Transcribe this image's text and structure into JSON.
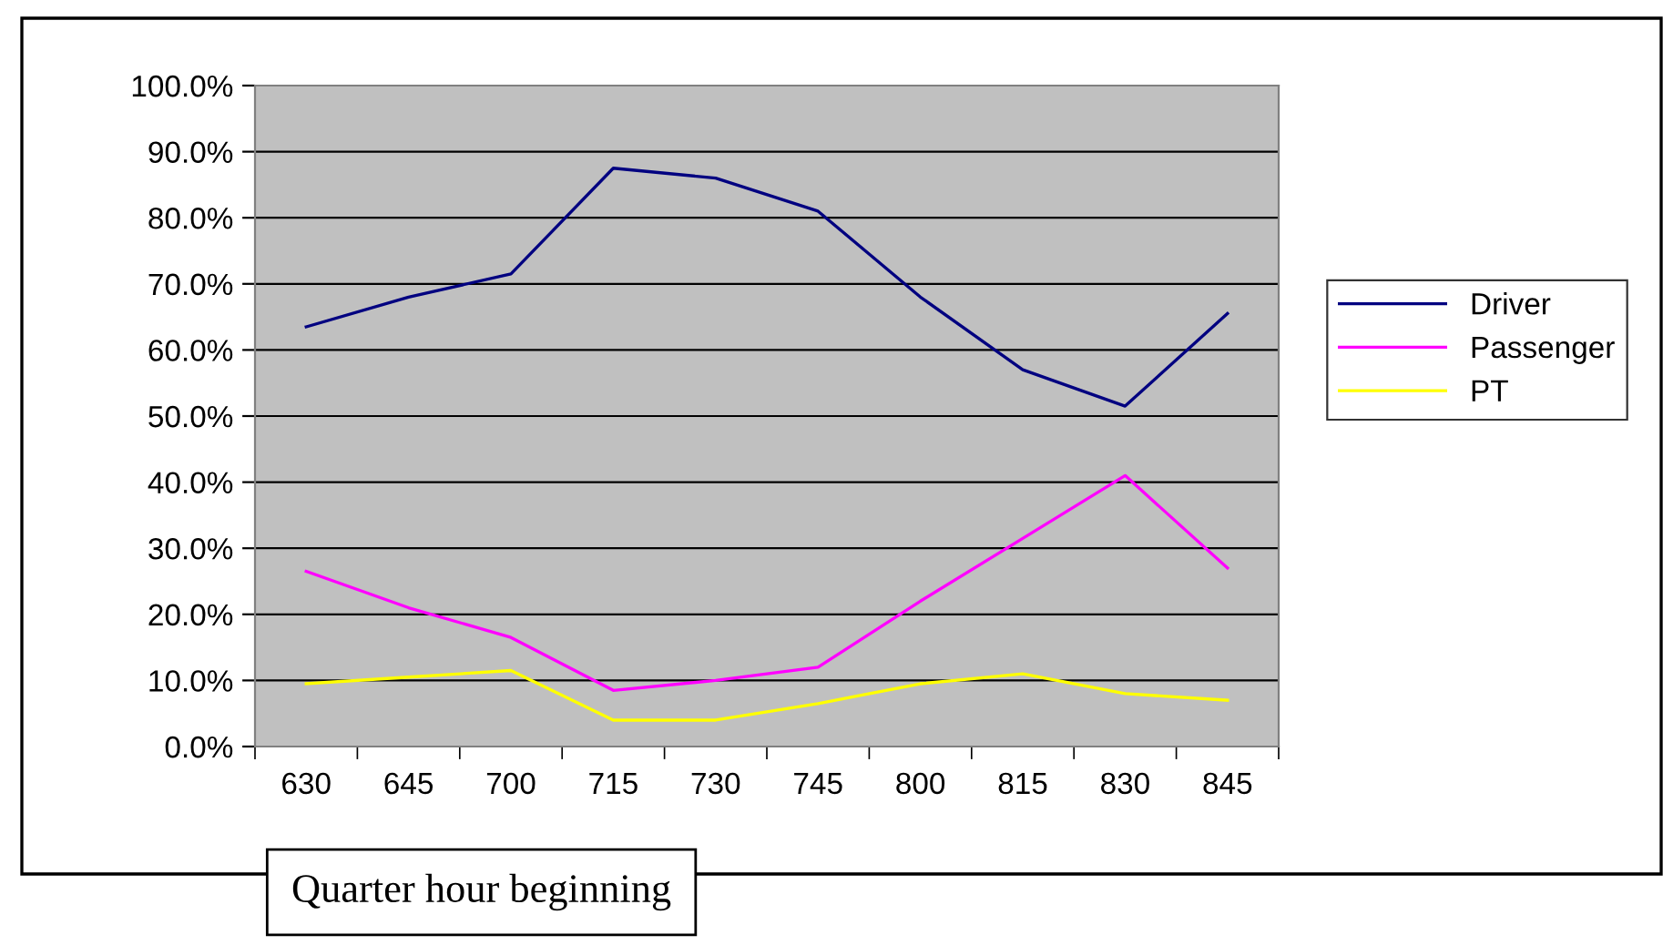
{
  "chart_data": {
    "type": "line",
    "xlabel": "Quarter hour beginning",
    "categories": [
      "630",
      "645",
      "700",
      "715",
      "730",
      "745",
      "800",
      "815",
      "830",
      "845"
    ],
    "series": [
      {
        "name": "Driver",
        "color": "#000080",
        "values": [
          63.5,
          68,
          71.5,
          87.5,
          86,
          81,
          68,
          57,
          51.5,
          65.5
        ]
      },
      {
        "name": "Passenger",
        "color": "#ff00ff",
        "values": [
          26.5,
          21,
          16.5,
          8.5,
          10,
          12,
          22,
          31.5,
          41,
          27
        ]
      },
      {
        "name": "PT",
        "color": "#ffff00",
        "values": [
          9.5,
          10.5,
          11.5,
          4,
          4,
          6.5,
          9.5,
          11,
          8,
          7
        ]
      }
    ],
    "ylim": [
      0,
      100
    ],
    "yticks": [
      {
        "value": 0,
        "label": "0.0%"
      },
      {
        "value": 10,
        "label": "10.0%"
      },
      {
        "value": 20,
        "label": "20.0%"
      },
      {
        "value": 30,
        "label": "30.0%"
      },
      {
        "value": 40,
        "label": "40.0%"
      },
      {
        "value": 50,
        "label": "50.0%"
      },
      {
        "value": 60,
        "label": "60.0%"
      },
      {
        "value": 70,
        "label": "70.0%"
      },
      {
        "value": 80,
        "label": "80.0%"
      },
      {
        "value": 90,
        "label": "90.0%"
      },
      {
        "value": 100,
        "label": "100.0%"
      }
    ],
    "grid": "y",
    "legend": "right",
    "marker": "none",
    "line_style": "solid"
  }
}
